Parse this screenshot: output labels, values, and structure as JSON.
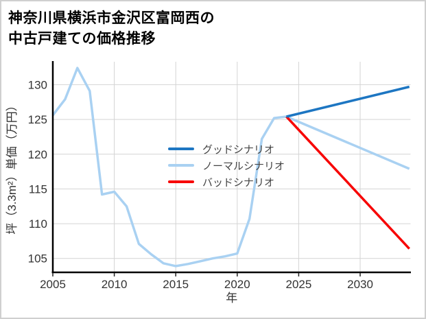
{
  "header": {
    "title_line1": "神奈川県横浜市金沢区富岡西の",
    "title_line2": "中古戸建ての価格推移"
  },
  "chart_data": {
    "type": "line",
    "title": "神奈川県横浜市金沢区富岡西の中古戸建ての価格推移",
    "xlabel": "年",
    "ylabel": "坪（3.3m²）単価（万円）",
    "xlim": [
      2005,
      2034.1
    ],
    "ylim": [
      103,
      133.3
    ],
    "xticks": [
      2005,
      2010,
      2015,
      2020,
      2025,
      2030
    ],
    "yticks": [
      105,
      110,
      115,
      120,
      125,
      130
    ],
    "grid": true,
    "legend_position": "inside-middle-left, no frame",
    "styles": {
      "grid_color": "#d4d4d4",
      "axis_color": "#000000",
      "tick_text_color": "#333333",
      "legend_text_color": "#444444",
      "line_width": 3.5
    },
    "series": [
      {
        "key": "good",
        "name": "グッドシナリオ",
        "color": "#1d76c2",
        "x": [
          2024,
          2034
        ],
        "y": [
          125.4,
          129.7
        ]
      },
      {
        "key": "normal",
        "name": "ノーマルシナリオ",
        "color": "#a9d1f2",
        "x": [
          2005,
          2006,
          2007,
          2008,
          2009,
          2010,
          2011,
          2012,
          2013,
          2014,
          2015,
          2016,
          2017,
          2018,
          2019,
          2020,
          2021,
          2022,
          2023,
          2024,
          2034
        ],
        "y": [
          125.6,
          127.9,
          132.4,
          129.1,
          114.2,
          114.6,
          112.5,
          107.1,
          105.6,
          104.3,
          103.9,
          104.2,
          104.6,
          105.0,
          105.3,
          105.7,
          110.7,
          122.2,
          125.2,
          125.4,
          117.9
        ]
      },
      {
        "key": "bad",
        "name": "バッドシナリオ",
        "color": "#f70404",
        "x": [
          2024,
          2034
        ],
        "y": [
          125.4,
          106.4
        ]
      }
    ]
  }
}
